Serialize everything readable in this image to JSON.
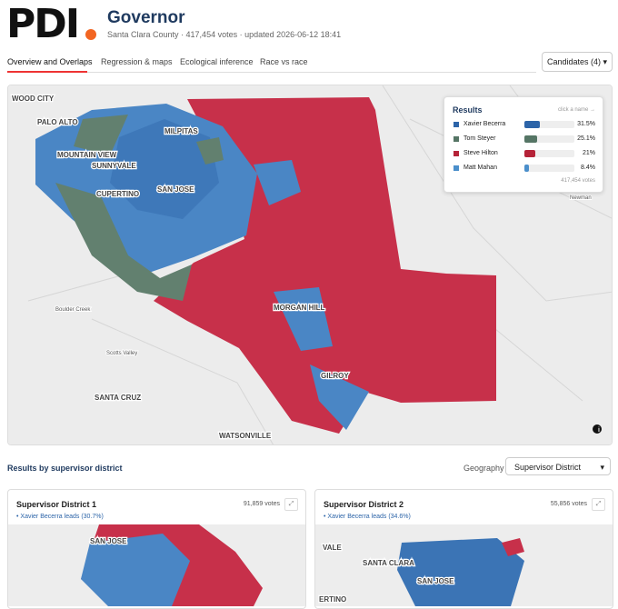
{
  "header": {
    "logo": "PDI",
    "title": "Governor",
    "subtitle": "Santa Clara County · 417,454 votes · updated 2026-06-12 18:41"
  },
  "tabs": [
    "Overview and Overlaps",
    "Regression & maps",
    "Ecological inference",
    "Race vs race"
  ],
  "candidates_button": "Candidates (4)",
  "map": {
    "place_labels": [
      "WOOD CITY",
      "PALO ALTO",
      "MOUNTAIN VIEW",
      "SUNNYVALE",
      "CUPERTINO",
      "SAN JOSE",
      "MILPITAS",
      "Boulder Creek",
      "Scotts Valley",
      "SANTA CRUZ",
      "WATSONVILLE",
      "MORGAN HILL",
      "GILROY",
      "Newman"
    ],
    "results": {
      "title": "Results",
      "hint": "click a name →",
      "candidates": [
        "Xavier Becerra",
        "Tom Steyer",
        "Steve Hilton",
        "Matt Mahan"
      ],
      "values": [
        31.5,
        25.1,
        21,
        8.4
      ],
      "value_labels": [
        "31.5%",
        "25.1%",
        "21%",
        "8.4%"
      ],
      "colors": [
        "#2c64a8",
        "#557565",
        "#b52338",
        "#4b8fcb"
      ],
      "total": "417,454 votes"
    }
  },
  "district_section": {
    "title": "Results by supervisor district",
    "geography_label": "Geography",
    "geography_select": "Supervisor District"
  },
  "cards": [
    {
      "title": "Supervisor District 1",
      "votes": "91,859 votes",
      "leader": "Xavier Becerra leads (30.7%)",
      "place_labels": [
        "SAN JOSE"
      ]
    },
    {
      "title": "Supervisor District 2",
      "votes": "55,856 votes",
      "leader": "Xavier Becerra leads (34.6%)",
      "place_labels": [
        "VALE",
        "SANTA CLARA",
        "SAN JOSE",
        "ERTINO"
      ]
    }
  ]
}
